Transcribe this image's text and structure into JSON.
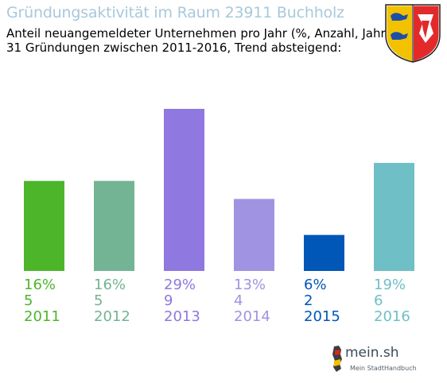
{
  "chart_data": {
    "type": "bar",
    "title": "Gründungsaktivität im Raum 23911 Buchholz",
    "subtitle_lines": [
      "Anteil neuangemeldeter Unternehmen pro Jahr (%, Anzahl, Jahr)",
      "31 Gründungen zwischen 2011-2016, Trend absteigend:"
    ],
    "categories": [
      "2011",
      "2012",
      "2013",
      "2014",
      "2015",
      "2016"
    ],
    "percent_labels": [
      "16%",
      "16%",
      "29%",
      "13%",
      "6%",
      "19%"
    ],
    "count_labels": [
      "5",
      "5",
      "9",
      "4",
      "2",
      "6"
    ],
    "values": [
      5,
      5,
      9,
      4,
      2,
      6
    ],
    "colors": [
      "#4db52a",
      "#72b493",
      "#8f78e0",
      "#a093e2",
      "#0057b8",
      "#6fbfc6"
    ],
    "ylim": [
      0,
      9
    ],
    "grid": false,
    "legend": "none"
  },
  "logo": {
    "brand": "mein.sh",
    "tagline": "Mein StadtHandbuch"
  }
}
